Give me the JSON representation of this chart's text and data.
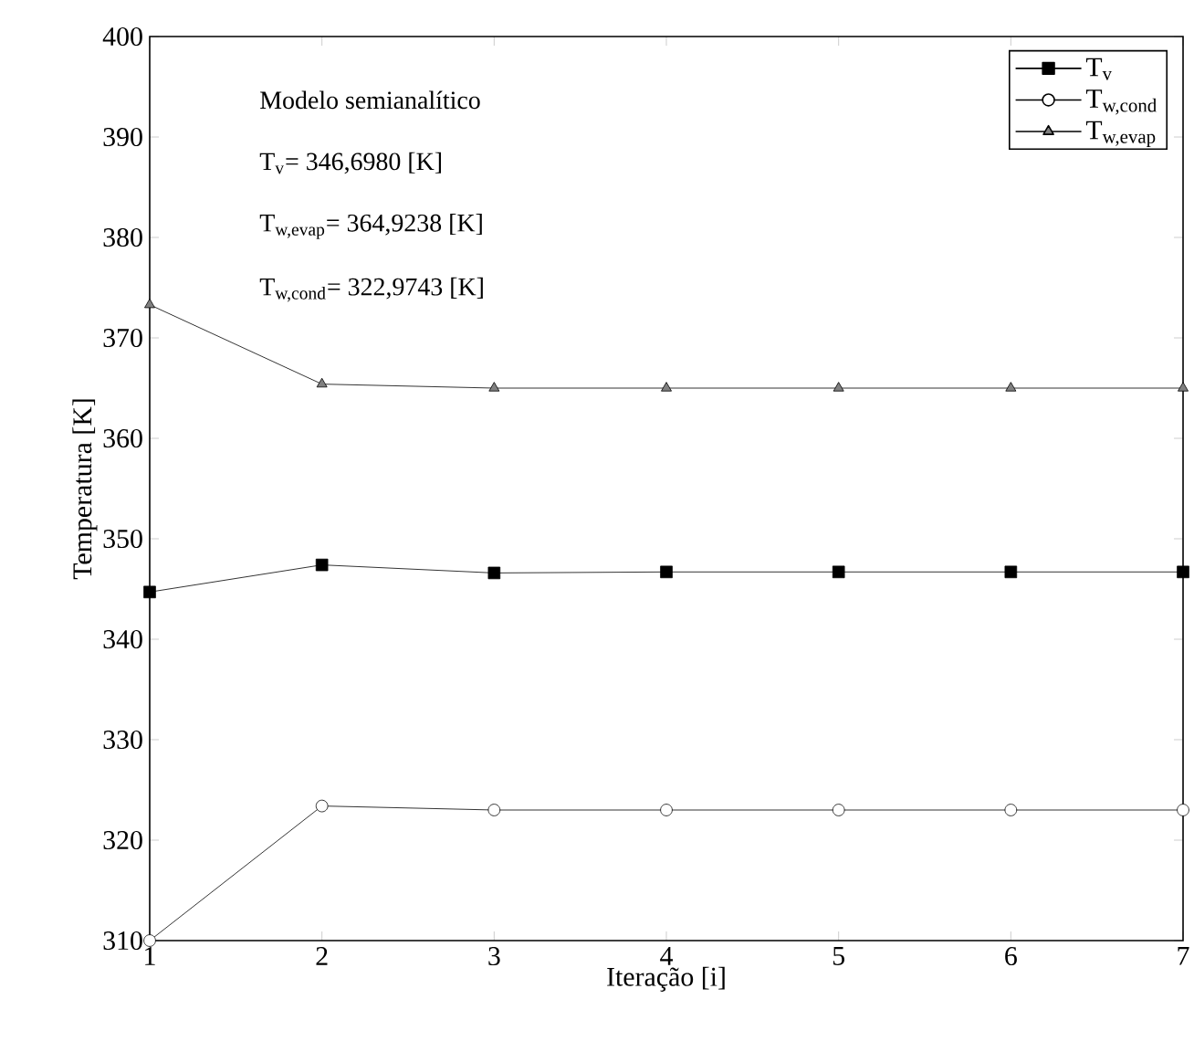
{
  "chart_data": {
    "type": "line",
    "xlabel": "Iteração [i]",
    "ylabel": "Temperatura [K]",
    "x": [
      1,
      2,
      3,
      4,
      5,
      6,
      7
    ],
    "series": [
      {
        "name": "T$_{v}$",
        "color": "#000000",
        "marker": "square",
        "values": [
          344.7,
          347.4,
          346.6,
          346.7,
          346.7,
          346.7,
          346.7
        ]
      },
      {
        "name": "T$_{w,cond}$",
        "color": "#ffffff",
        "marker": "circle",
        "values": [
          310.0,
          323.4,
          323.0,
          323.0,
          323.0,
          323.0,
          323.0
        ]
      },
      {
        "name": "T$_{w,evap}$",
        "color": "#808080",
        "marker": "triangle",
        "values": [
          373.3,
          365.4,
          365.0,
          365.0,
          365.0,
          365.0,
          365.0
        ]
      }
    ],
    "annotations": [
      "Modelo semianalítico",
      "T$_{v}$= 346,6980 [K]",
      "T$_{w,evap}$= 364,9238 [K]",
      "T$_{w,cond}$= 322,9743 [K]"
    ],
    "xlim": [
      1,
      7
    ],
    "ylim": [
      310,
      400
    ],
    "xticks": [
      1,
      2,
      3,
      4,
      5,
      6,
      7
    ],
    "yticks": [
      310,
      320,
      330,
      340,
      350,
      360,
      370,
      380,
      390,
      400
    ],
    "grid": false,
    "legend": "top right",
    "line_style": "solid"
  }
}
